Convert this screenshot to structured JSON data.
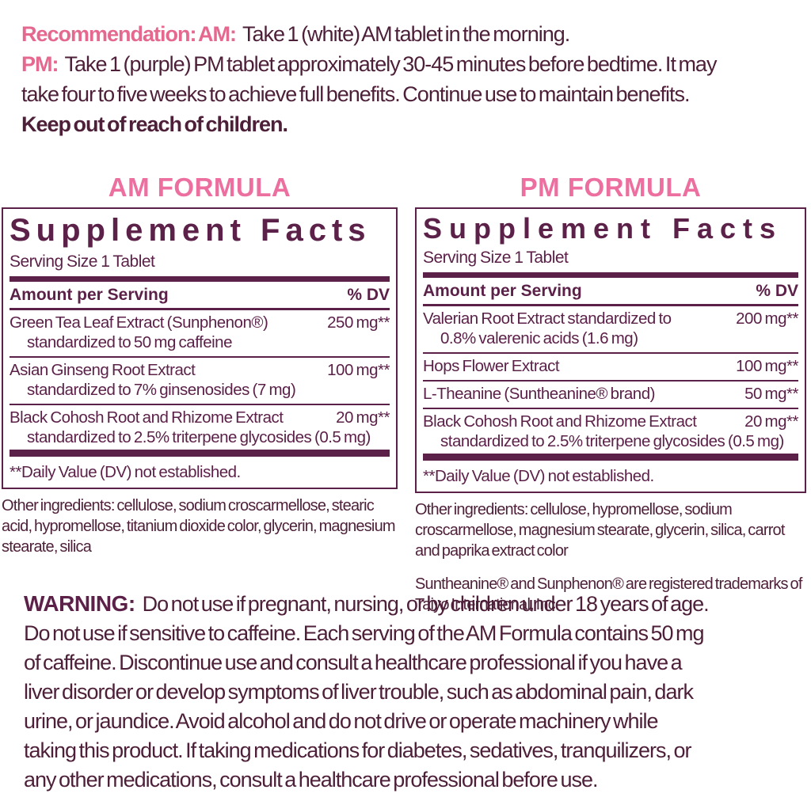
{
  "colors": {
    "pink_heading": "#ec6f9f",
    "pink_inline": "#e5688f",
    "maroon": "#5c2149",
    "body_text": "#4d1f38",
    "background": "#ffffff"
  },
  "recommendation": {
    "lines": [
      {
        "prefix": "Recommendation: AM:",
        "text": "Take 1 (white) AM tablet in the morning."
      },
      {
        "prefix": "PM:",
        "text": "Take 1 (purple) PM tablet approximately 30-45 minutes before bedtime. It may"
      },
      {
        "prefix": "",
        "text": "take four to five weeks to achieve full benefits. Continue use to maintain benefits."
      },
      {
        "prefix": "",
        "text": "Keep out of reach of children."
      }
    ]
  },
  "labels": {
    "panel_title": "Supplement Facts",
    "serving_size": "Serving Size 1 Tablet",
    "amount_per_serving": "Amount per Serving",
    "percent_dv": "% DV",
    "dv_note": "**Daily Value (DV) not established."
  },
  "am": {
    "title": "AM FORMULA",
    "rows": [
      {
        "name": "Green Tea Leaf Extract (Sunphenon®)",
        "sub": "standardized to 50 mg caffeine",
        "amount": "250 mg**"
      },
      {
        "name": "Asian Ginseng Root Extract",
        "sub": "standardized to 7% ginsenosides (7 mg)",
        "amount": "100 mg**"
      },
      {
        "name": "Black Cohosh Root and Rhizome Extract",
        "sub": "standardized to 2.5% triterpene glycosides (0.5 mg)",
        "amount": "20 mg**"
      }
    ],
    "other_ingredients": "Other ingredients: cellulose, sodium croscarmellose, stearic acid, hypromellose, titanium dioxide color, glycerin, magnesium stearate, silica"
  },
  "pm": {
    "title": "PM FORMULA",
    "rows": [
      {
        "name": "Valerian Root Extract standardized to",
        "sub": "0.8% valerenic acids (1.6 mg)",
        "amount": "200 mg**"
      },
      {
        "name": "Hops Flower Extract",
        "sub": "",
        "amount": "100 mg**"
      },
      {
        "name": "L-Theanine (Suntheanine® brand)",
        "sub": "",
        "amount": "50 mg**"
      },
      {
        "name": "Black Cohosh Root and Rhizome Extract",
        "sub": "standardized to 2.5% triterpene glycosides (0.5 mg)",
        "amount": "20 mg**"
      }
    ],
    "other_ingredients": "Other ingredients: cellulose, hypromellose, sodium croscarmellose, magnesium stearate, glycerin, silica, carrot and paprika extract color",
    "trademark": "Suntheanine® and Sunphenon® are registered trademarks of Taiyo International, Inc."
  },
  "warning": {
    "label": "WARNING:",
    "lines": [
      "Do not use if pregnant, nursing, or by children under 18 years of age.",
      "Do not use if sensitive to caffeine. Each serving of the AM Formula contains 50 mg",
      "of caffeine. Discontinue use and consult a healthcare professional if you have a",
      "liver disorder or develop symptoms of liver trouble, such as abdominal pain, dark",
      "urine, or jaundice. Avoid alcohol and do not drive or operate machinery while",
      "taking this product. If taking medications for diabetes, sedatives, tranquilizers, or",
      "any other medications, consult a healthcare professional before use."
    ]
  }
}
